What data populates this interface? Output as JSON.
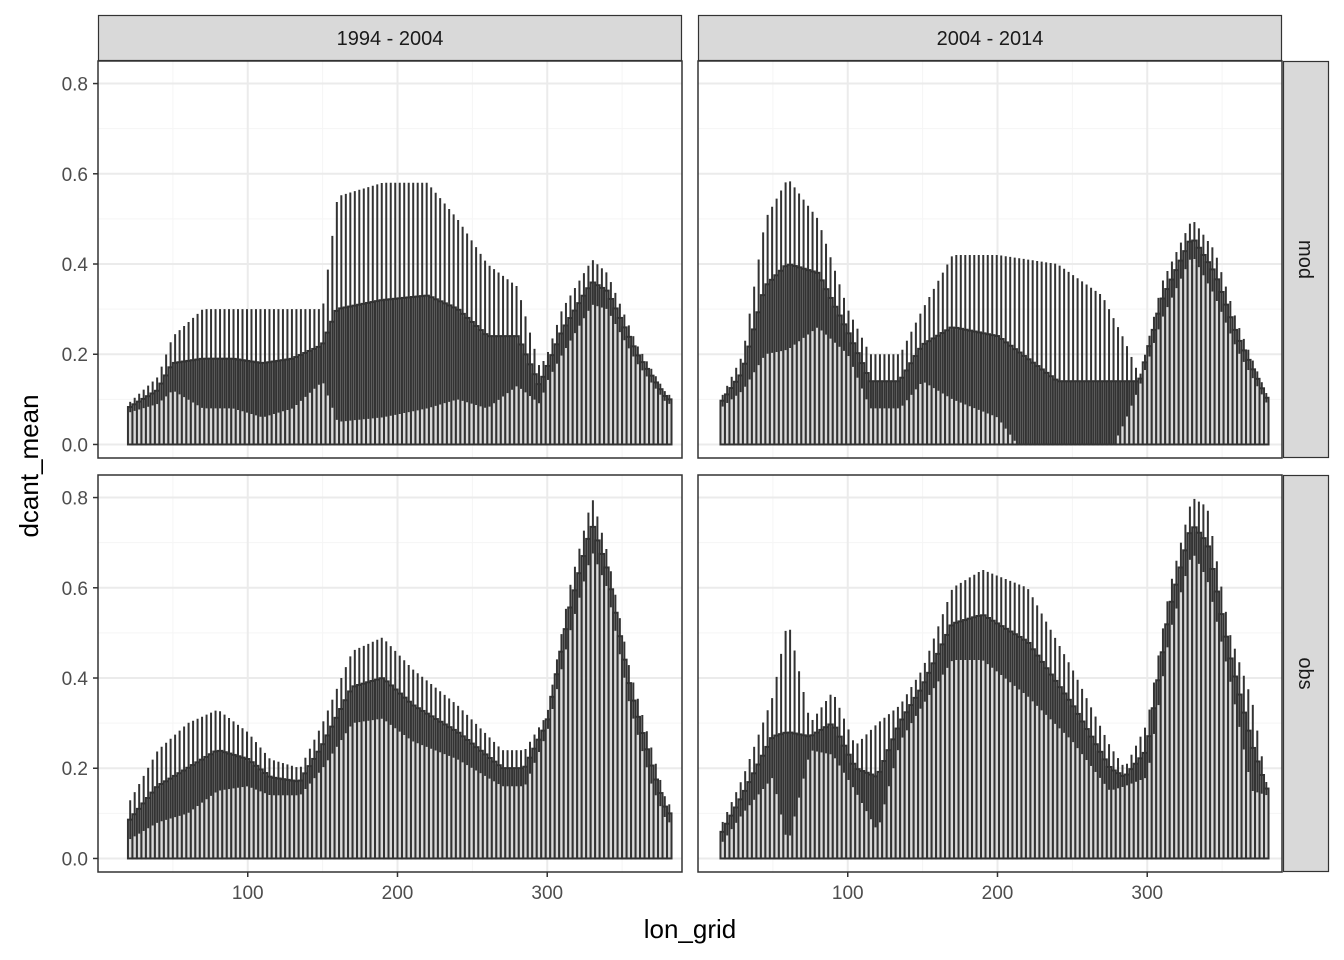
{
  "chart_data": {
    "type": "bar",
    "xlabel": "lon_grid",
    "ylabel": "dcant_mean",
    "xlim": [
      0,
      390
    ],
    "ylim": [
      -0.03,
      0.85
    ],
    "x_ticks": [
      100,
      200,
      300
    ],
    "x_minor": [
      50,
      150,
      250,
      350
    ],
    "y_ticks": [
      0.0,
      0.2,
      0.4,
      0.6,
      0.8
    ],
    "y_tick_labels": [
      "0.0",
      "0.2",
      "0.4",
      "0.6",
      "0.8"
    ],
    "y_minor": [
      0.1,
      0.3,
      0.5,
      0.7
    ],
    "grid": true,
    "column_facets": [
      "1994 - 2004",
      "2004 - 2014"
    ],
    "row_facets": [
      "mod",
      "obs"
    ],
    "bar_width": 3,
    "error_bars": true,
    "panels": [
      {
        "col": "1994 - 2004",
        "row": "mod",
        "profile": [
          [
            20,
            0.08,
            0.09
          ],
          [
            40,
            0.12,
            0.15
          ],
          [
            50,
            0.18,
            0.24
          ],
          [
            70,
            0.19,
            0.3
          ],
          [
            90,
            0.19,
            0.3
          ],
          [
            110,
            0.18,
            0.3
          ],
          [
            130,
            0.19,
            0.3
          ],
          [
            150,
            0.22,
            0.3
          ],
          [
            160,
            0.3,
            0.55
          ],
          [
            190,
            0.32,
            0.58
          ],
          [
            220,
            0.33,
            0.58
          ],
          [
            240,
            0.3,
            0.5
          ],
          [
            260,
            0.24,
            0.4
          ],
          [
            280,
            0.24,
            0.35
          ],
          [
            295,
            0.13,
            0.17
          ],
          [
            300,
            0.17,
            0.2
          ],
          [
            310,
            0.25,
            0.3
          ],
          [
            330,
            0.36,
            0.41
          ],
          [
            340,
            0.34,
            0.38
          ],
          [
            360,
            0.2,
            0.22
          ],
          [
            380,
            0.1,
            0.11
          ]
        ]
      },
      {
        "col": "2004 - 2014",
        "row": "mod",
        "profile": [
          [
            15,
            0.09,
            0.1
          ],
          [
            30,
            0.16,
            0.2
          ],
          [
            45,
            0.35,
            0.5
          ],
          [
            60,
            0.4,
            0.59
          ],
          [
            80,
            0.38,
            0.5
          ],
          [
            100,
            0.25,
            0.3
          ],
          [
            115,
            0.14,
            0.2
          ],
          [
            135,
            0.14,
            0.2
          ],
          [
            150,
            0.22,
            0.3
          ],
          [
            170,
            0.26,
            0.42
          ],
          [
            200,
            0.24,
            0.42
          ],
          [
            240,
            0.14,
            0.4
          ],
          [
            270,
            0.14,
            0.33
          ],
          [
            285,
            0.14,
            0.23
          ],
          [
            295,
            0.14,
            0.15
          ],
          [
            310,
            0.32,
            0.36
          ],
          [
            330,
            0.46,
            0.5
          ],
          [
            345,
            0.38,
            0.43
          ],
          [
            360,
            0.24,
            0.27
          ],
          [
            380,
            0.1,
            0.11
          ]
        ]
      },
      {
        "col": "1994 - 2004",
        "row": "obs",
        "profile": [
          [
            20,
            0.08,
            0.12
          ],
          [
            40,
            0.16,
            0.24
          ],
          [
            60,
            0.2,
            0.3
          ],
          [
            80,
            0.24,
            0.33
          ],
          [
            100,
            0.22,
            0.28
          ],
          [
            115,
            0.18,
            0.22
          ],
          [
            135,
            0.17,
            0.2
          ],
          [
            150,
            0.25,
            0.3
          ],
          [
            170,
            0.38,
            0.46
          ],
          [
            190,
            0.4,
            0.49
          ],
          [
            210,
            0.34,
            0.42
          ],
          [
            240,
            0.28,
            0.34
          ],
          [
            270,
            0.2,
            0.24
          ],
          [
            285,
            0.2,
            0.24
          ],
          [
            300,
            0.3,
            0.32
          ],
          [
            315,
            0.55,
            0.6
          ],
          [
            330,
            0.74,
            0.8
          ],
          [
            340,
            0.64,
            0.68
          ],
          [
            355,
            0.38,
            0.42
          ],
          [
            370,
            0.2,
            0.24
          ],
          [
            380,
            0.1,
            0.12
          ]
        ]
      },
      {
        "col": "2004 - 2014",
        "row": "obs",
        "profile": [
          [
            15,
            0.05,
            0.07
          ],
          [
            30,
            0.14,
            0.18
          ],
          [
            50,
            0.27,
            0.36
          ],
          [
            60,
            0.28,
            0.53
          ],
          [
            75,
            0.27,
            0.3
          ],
          [
            90,
            0.3,
            0.37
          ],
          [
            105,
            0.2,
            0.25
          ],
          [
            120,
            0.18,
            0.3
          ],
          [
            135,
            0.3,
            0.34
          ],
          [
            150,
            0.38,
            0.42
          ],
          [
            170,
            0.52,
            0.6
          ],
          [
            190,
            0.54,
            0.64
          ],
          [
            220,
            0.48,
            0.6
          ],
          [
            250,
            0.34,
            0.42
          ],
          [
            275,
            0.2,
            0.25
          ],
          [
            285,
            0.18,
            0.2
          ],
          [
            300,
            0.24,
            0.3
          ],
          [
            315,
            0.55,
            0.6
          ],
          [
            330,
            0.74,
            0.8
          ],
          [
            340,
            0.7,
            0.78
          ],
          [
            355,
            0.45,
            0.5
          ],
          [
            370,
            0.25,
            0.35
          ],
          [
            380,
            0.15,
            0.16
          ]
        ]
      }
    ]
  },
  "colors": {
    "bar_fill": "#d9d9d9",
    "bar_stroke": "#333333",
    "errorbar": "#333333",
    "strip_fill": "#d9d9d9",
    "panel_border": "#333333",
    "grid_major": "#ebebeb",
    "grid_minor": "#f5f5f5"
  }
}
